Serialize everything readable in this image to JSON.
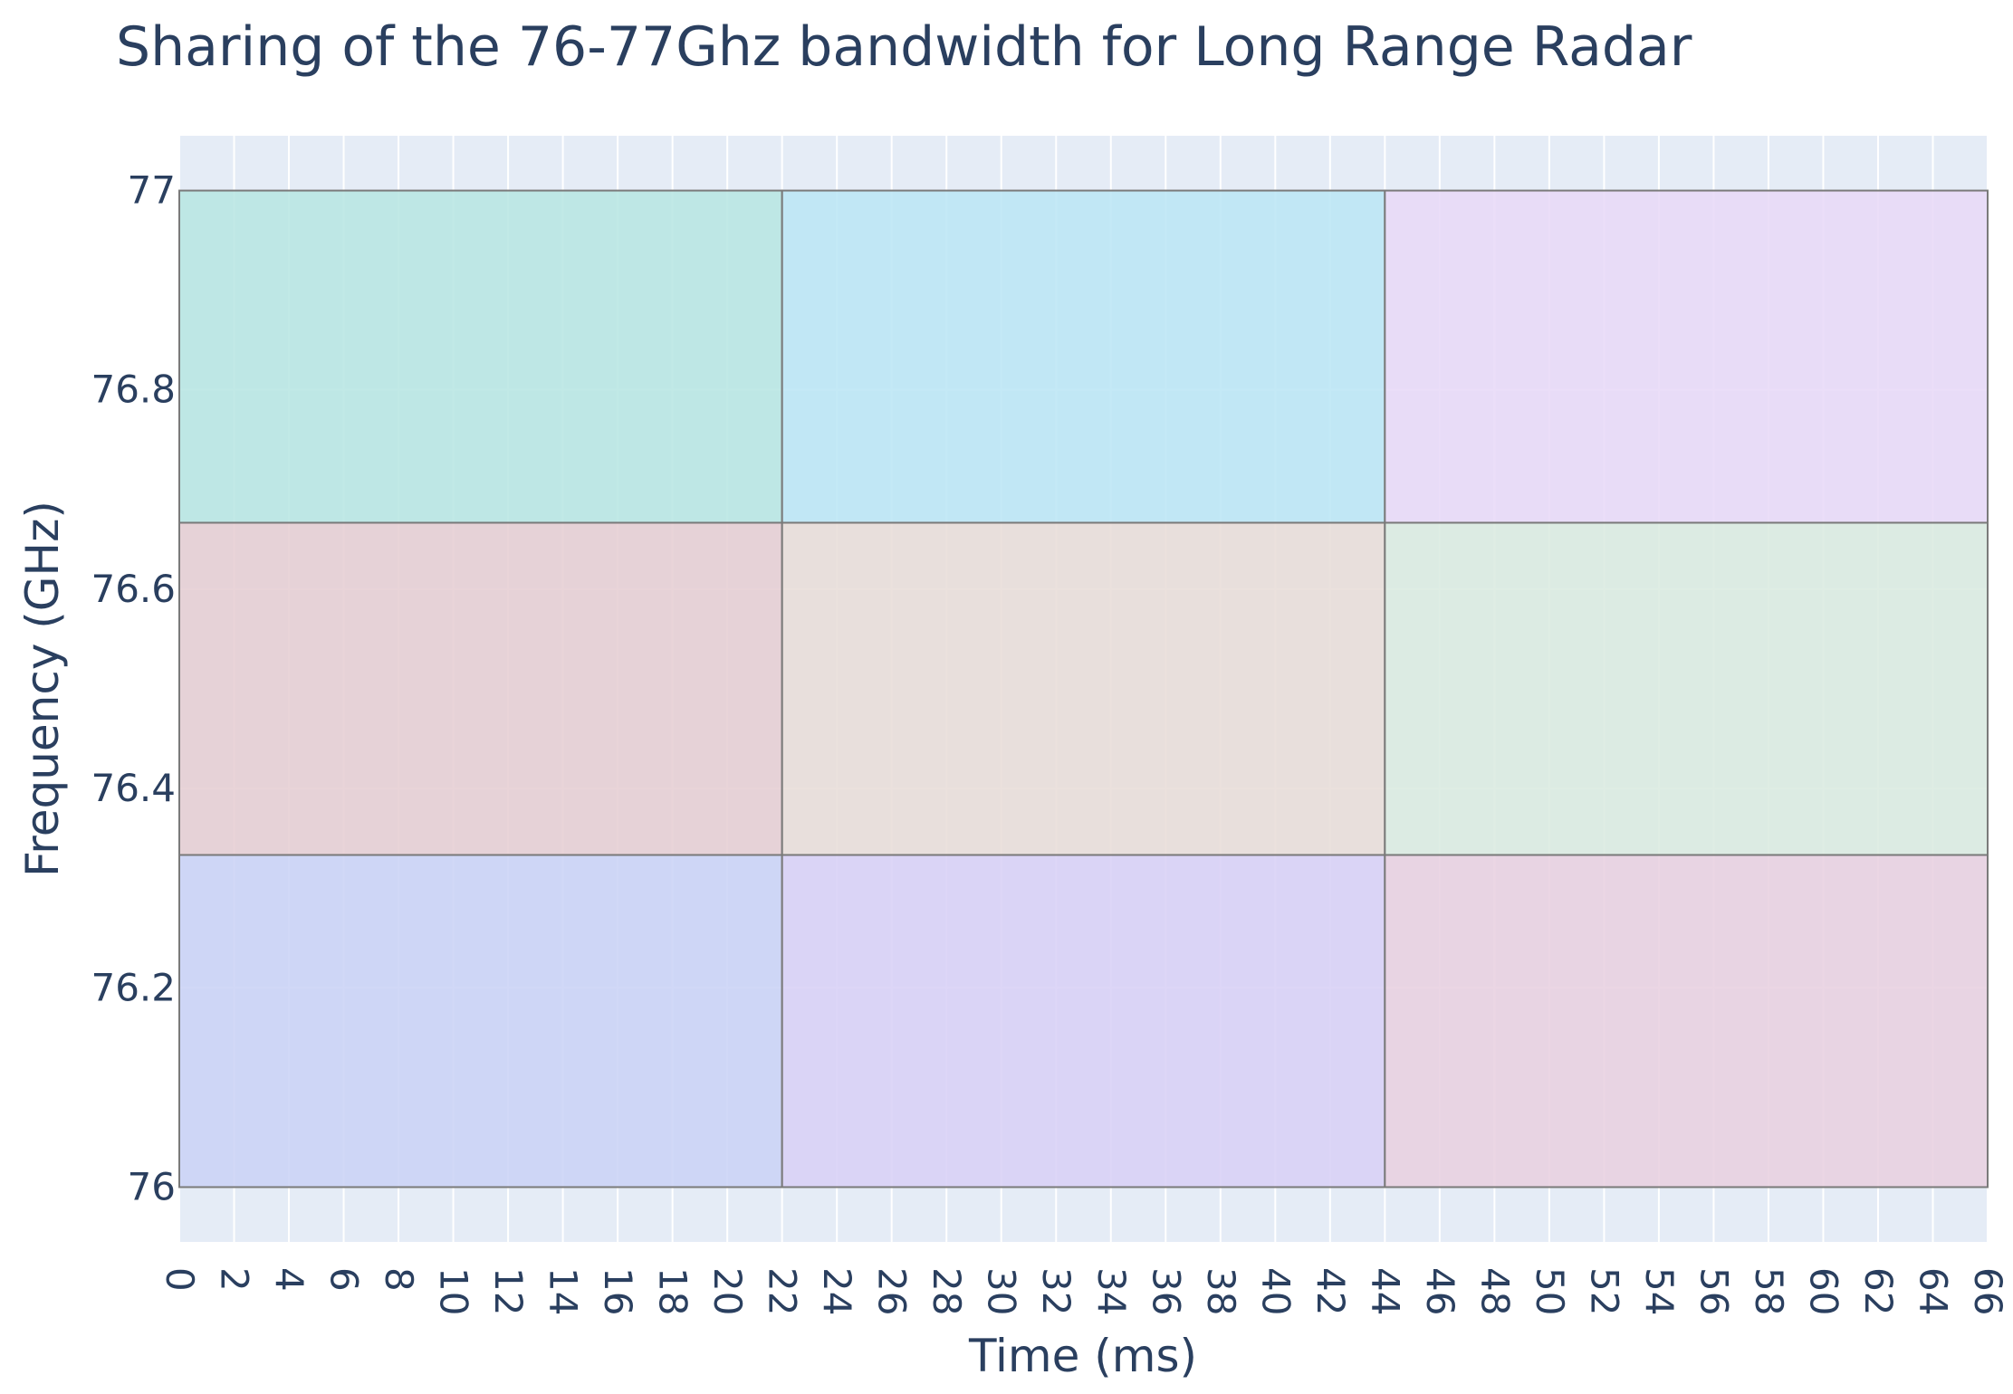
{
  "chart_data": {
    "type": "bar",
    "title": "Sharing of the 76-77Ghz bandwidth for Long Range Radar",
    "xlabel": "Time (ms)",
    "ylabel": "Frequency (GHz)",
    "xlim": [
      0,
      66
    ],
    "ylim": [
      75.945,
      77.055
    ],
    "x_ticks": [
      "0",
      "2",
      "4",
      "6",
      "8",
      "10",
      "12",
      "14",
      "16",
      "18",
      "20",
      "22",
      "24",
      "26",
      "28",
      "30",
      "32",
      "34",
      "36",
      "38",
      "40",
      "42",
      "44",
      "46",
      "48",
      "50",
      "52",
      "54",
      "56",
      "58",
      "60",
      "62",
      "64",
      "66"
    ],
    "y_ticks": [
      "76",
      "76.2",
      "76.4",
      "76.6",
      "76.8",
      "77"
    ],
    "grid": true,
    "legend": "none",
    "blocks": [
      {
        "t0": 0,
        "t1": 22,
        "f0": 76.6667,
        "f1": 77.0,
        "color": "#b8e6e3"
      },
      {
        "t0": 22,
        "t1": 44,
        "f0": 76.6667,
        "f1": 77.0,
        "color": "#bce6f5"
      },
      {
        "t0": 44,
        "t1": 66,
        "f0": 76.6667,
        "f1": 77.0,
        "color": "#e8daf7"
      },
      {
        "t0": 0,
        "t1": 22,
        "f0": 76.3333,
        "f1": 76.6667,
        "color": "#e6ced3"
      },
      {
        "t0": 22,
        "t1": 44,
        "f0": 76.3333,
        "f1": 76.6667,
        "color": "#e8ddd8"
      },
      {
        "t0": 44,
        "t1": 66,
        "f0": 76.3333,
        "f1": 76.6667,
        "color": "#dbeae0"
      },
      {
        "t0": 0,
        "t1": 22,
        "f0": 76.0,
        "f1": 76.3333,
        "color": "#cbd3f6"
      },
      {
        "t0": 22,
        "t1": 44,
        "f0": 76.0,
        "f1": 76.3333,
        "color": "#d8d0f6"
      },
      {
        "t0": 44,
        "t1": 66,
        "f0": 76.0,
        "f1": 76.3333,
        "color": "#e8d0e0"
      }
    ],
    "colors": {
      "plot_bg": "#e5ecf6",
      "grid": "#ffffff",
      "block_border": "#7a7a7a",
      "text": "#2a3f5f"
    }
  }
}
